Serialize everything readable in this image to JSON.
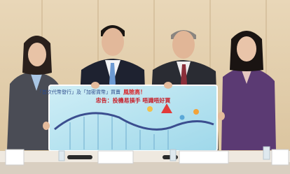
{
  "banner": {
    "line1": "「首次代幣發行」及「加密貨幣」買賣",
    "line1_highlight": "風險高！",
    "line2": "忠告：投機易損手 唔識唔好買"
  }
}
